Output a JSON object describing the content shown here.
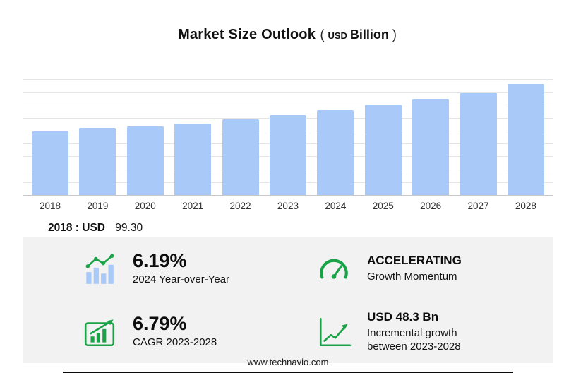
{
  "title": {
    "main": "Market Size Outlook",
    "open_paren": "(",
    "currency": "USD",
    "unit": "Billion",
    "close_paren": ")"
  },
  "chart_data": {
    "type": "bar",
    "categories": [
      "2018",
      "2019",
      "2020",
      "2021",
      "2022",
      "2023",
      "2024",
      "2025",
      "2026",
      "2027",
      "2028"
    ],
    "values": [
      99.3,
      103.8,
      106.2,
      111.1,
      117.2,
      124.2,
      131.9,
      140.1,
      149.3,
      159.7,
      172.5
    ],
    "title": "Market Size Outlook (USD Billion)",
    "xlabel": "",
    "ylabel": "USD Billion",
    "ylim": [
      0,
      180
    ],
    "grid_step": 20,
    "grid": true,
    "legend": "none",
    "bar_color": "#a9c9f8"
  },
  "annotation": {
    "base_year_label": "2018 : USD",
    "base_year_value": "99.30"
  },
  "stats": {
    "yoy": {
      "value": "6.19%",
      "label": "2024 Year-over-Year",
      "icon": "bar-chart-growth-icon"
    },
    "momentum": {
      "value": "ACCELERATING",
      "label": "Growth Momentum",
      "icon": "speedometer-icon"
    },
    "cagr": {
      "value": "6.79%",
      "label": "CAGR 2023-2028",
      "icon": "chart-box-arrow-icon"
    },
    "incremental": {
      "value": "USD 48.3 Bn",
      "label_line1": "Incremental growth",
      "label_line2": "between 2023-2028",
      "icon": "line-chart-arrow-icon"
    }
  },
  "footer": {
    "url": "www.technavio.com"
  },
  "colors": {
    "accent_green": "#19a347",
    "bar_blue": "#a9c9f8",
    "panel_bg": "#f2f2f2",
    "grid": "#e4e4e4"
  }
}
